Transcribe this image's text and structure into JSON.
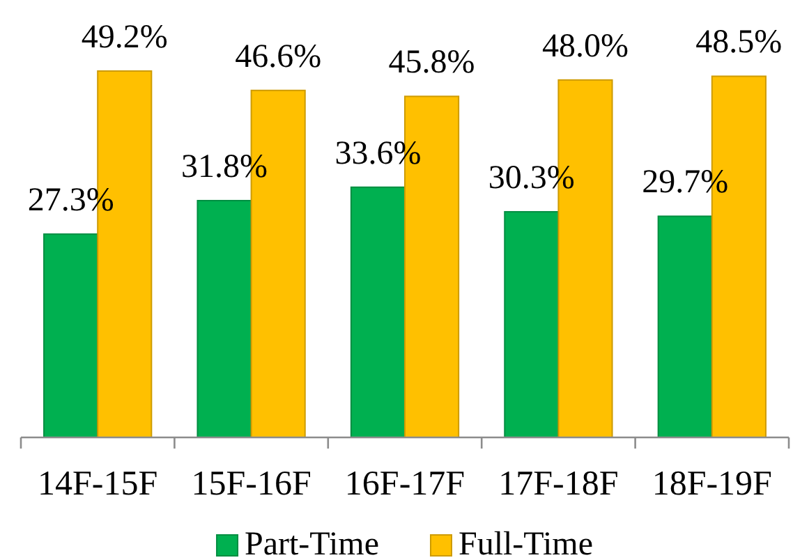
{
  "chart_data": {
    "type": "bar",
    "categories": [
      "14F-15F",
      "15F-16F",
      "16F-17F",
      "17F-18F",
      "18F-19F"
    ],
    "series": [
      {
        "name": "Part-Time",
        "color": "#00b050",
        "values": [
          27.3,
          31.8,
          33.6,
          30.3,
          29.7
        ],
        "value_labels": [
          "27.3%",
          "31.8%",
          "33.6%",
          "30.3%",
          "29.7%"
        ]
      },
      {
        "name": "Full-Time",
        "color": "#ffc000",
        "values": [
          49.2,
          46.6,
          45.8,
          48.0,
          48.5
        ],
        "value_labels": [
          "49.2%",
          "46.6%",
          "45.8%",
          "48.0%",
          "48.5%"
        ]
      }
    ],
    "legend": "bottom"
  }
}
